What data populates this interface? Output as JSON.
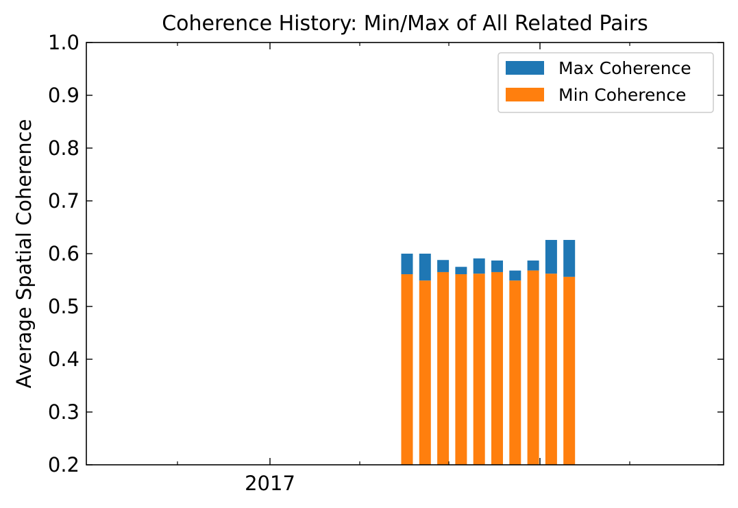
{
  "chart_data": {
    "type": "bar",
    "title": "Coherence History: Min/Max of All Related Pairs",
    "xlabel": "",
    "ylabel": "Average Spatial Coherence",
    "ylim": [
      0.2,
      1.0
    ],
    "yticks": [
      0.2,
      0.3,
      0.4,
      0.5,
      0.6,
      0.7,
      0.8,
      0.9,
      1.0
    ],
    "ytick_labels": [
      "0.2",
      "0.3",
      "0.4",
      "0.5",
      "0.6",
      "0.7",
      "0.8",
      "0.9",
      "1.0"
    ],
    "xtick_labels": [
      "2017"
    ],
    "legend_position": "top-right",
    "grid": false,
    "colors": {
      "max": "#1f77b4",
      "min": "#ff7f0e"
    },
    "series": [
      {
        "name": "Max Coherence",
        "values": [
          0.6,
          0.6,
          0.588,
          0.575,
          0.591,
          0.587,
          0.568,
          0.587,
          0.626,
          0.626
        ]
      },
      {
        "name": "Min Coherence",
        "values": [
          0.561,
          0.549,
          0.565,
          0.561,
          0.562,
          0.565,
          0.549,
          0.568,
          0.562,
          0.556
        ]
      }
    ]
  }
}
